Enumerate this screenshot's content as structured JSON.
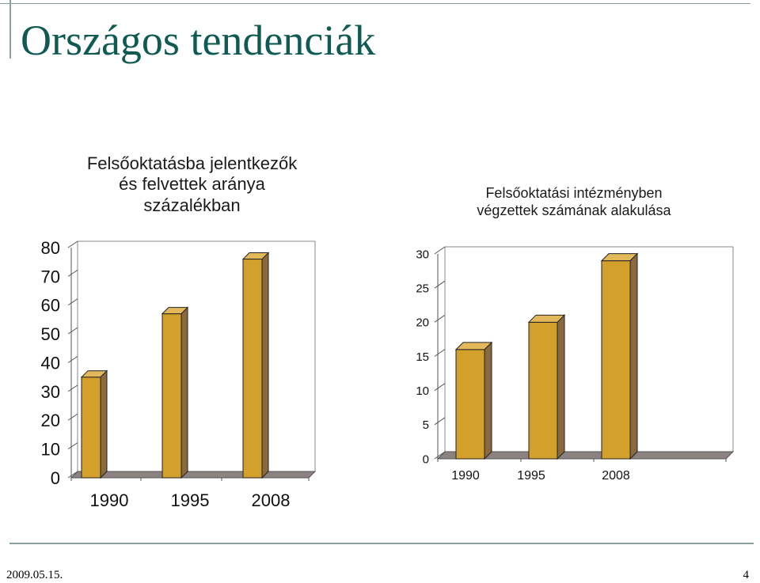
{
  "slide": {
    "title": "Országos tendenciák",
    "date": "2009.05.15.",
    "page_number": "4"
  },
  "colors": {
    "title": "#0f5a52",
    "bar_front": "#d4a02c",
    "bar_side": "#8a6a3c",
    "floor": "#8c8282",
    "axis_lines": "#8aa0a0"
  },
  "chart_data": [
    {
      "type": "bar",
      "title_lines": [
        "Felsőoktatásba jelentkezők",
        "és felvettek aránya",
        "százalékban"
      ],
      "categories": [
        "1990",
        "1995",
        "2008"
      ],
      "values": [
        35,
        57,
        76
      ],
      "ylim": [
        0,
        80
      ],
      "yticks": [
        "0",
        "10",
        "20",
        "30",
        "40",
        "50",
        "60",
        "70",
        "80"
      ],
      "grid": false
    },
    {
      "type": "bar",
      "title_lines": [
        "Felsőoktatási intézményben",
        "végzettek számának alakulása"
      ],
      "categories": [
        "1990",
        "1995",
        "2008"
      ],
      "values": [
        16,
        20,
        29
      ],
      "ylim": [
        0,
        30
      ],
      "yticks": [
        "0",
        "5",
        "10",
        "15",
        "20",
        "25",
        "30"
      ],
      "grid": false
    }
  ]
}
